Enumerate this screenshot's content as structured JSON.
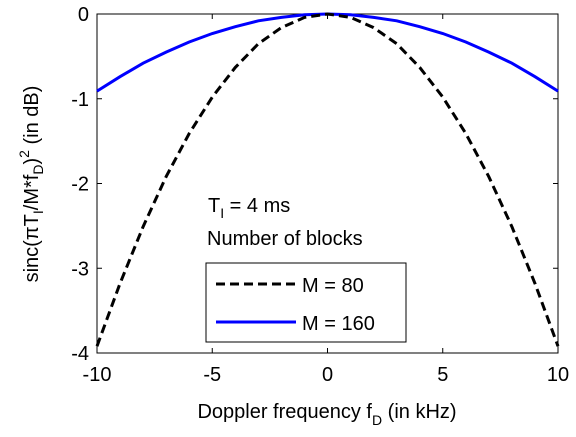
{
  "chart_data": {
    "type": "line",
    "title": "",
    "xlabel_main": "Doppler frequency f",
    "xlabel_sub": "D",
    "xlabel_tail": " (in kHz)",
    "ylabel": "sinc(πT_I/M*f_D)^2 (in dB)",
    "xlim": [
      -10,
      10
    ],
    "ylim": [
      -4,
      0
    ],
    "xticks": [
      -10,
      -5,
      0,
      5,
      10
    ],
    "xtick_labels": [
      "-10",
      "-5",
      "0",
      "5",
      "10"
    ],
    "yticks": [
      -4,
      -3,
      -2,
      -1,
      0
    ],
    "ytick_labels": [
      "-4",
      "-3",
      "-2",
      "-1",
      "0"
    ],
    "grid": false,
    "annotation": {
      "line1_main": "T",
      "line1_sub": "I",
      "line1_tail": " = 4 ms",
      "line2": "Number of blocks"
    },
    "legend_placement": "lower-center",
    "x": [
      -10,
      -9,
      -8,
      -7,
      -6,
      -5,
      -4,
      -3,
      -2,
      -1,
      0,
      1,
      2,
      3,
      4,
      5,
      6,
      7,
      8,
      9,
      10
    ],
    "series": [
      {
        "name": "M = 80",
        "color": "#000000",
        "style": "dashed",
        "values": [
          -3.92,
          -3.18,
          -2.51,
          -1.92,
          -1.41,
          -0.98,
          -0.63,
          -0.35,
          -0.16,
          -0.04,
          0,
          -0.04,
          -0.16,
          -0.35,
          -0.63,
          -0.98,
          -1.41,
          -1.92,
          -2.51,
          -3.18,
          -3.92
        ]
      },
      {
        "name": "M = 160",
        "color": "#0000ff",
        "style": "solid",
        "values": [
          -0.91,
          -0.74,
          -0.58,
          -0.45,
          -0.33,
          -0.23,
          -0.15,
          -0.08,
          -0.04,
          -0.01,
          0,
          -0.01,
          -0.04,
          -0.08,
          -0.15,
          -0.23,
          -0.33,
          -0.45,
          -0.58,
          -0.74,
          -0.91
        ]
      }
    ]
  }
}
